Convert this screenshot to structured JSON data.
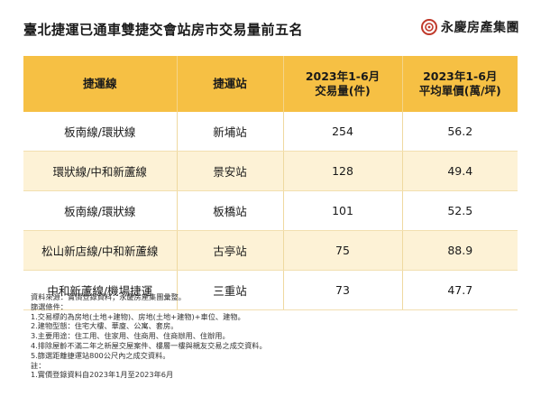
{
  "title": "臺北捷運已通車雙捷交會站房市交易量前五名",
  "brand": {
    "name": "永慶房產集團",
    "color": "#c0392b"
  },
  "table": {
    "headers": [
      {
        "line1": "捷運線",
        "line2": ""
      },
      {
        "line1": "捷運站",
        "line2": ""
      },
      {
        "line1": "2023年1-6月",
        "line2": "交易量(件)"
      },
      {
        "line1": "2023年1-6月",
        "line2": "平均單價(萬/坪)"
      }
    ],
    "rows": [
      {
        "line": "板南線/環狀線",
        "station": "新埔站",
        "volume": "254",
        "price": "56.2"
      },
      {
        "line": "環狀線/中和新蘆線",
        "station": "景安站",
        "volume": "128",
        "price": "49.4"
      },
      {
        "line": "板南線/環狀線",
        "station": "板橋站",
        "volume": "101",
        "price": "52.5"
      },
      {
        "line": "松山新店線/中和新蘆線",
        "station": "古亭站",
        "volume": "75",
        "price": "88.9"
      },
      {
        "line": "中和新蘆線/機場捷運",
        "station": "三重站",
        "volume": "73",
        "price": "47.7"
      }
    ],
    "header_color": "#f6c044",
    "stripe_color": "#fdf2d6"
  },
  "notes": [
    "資料來源：實價登錄資料；永慶房產集團彙整。",
    "篩選條件：",
    "1.交易標的為房地(土地+建物)、房地(土地+建物)+車位、建物。",
    "2.建物型態：住宅大樓、華廈、公寓、套房。",
    "3.主要用途：住工用、住家用、住商用、住商辦用、住辦用。",
    "4.排除屋齡不滿二年之新屋交屋案件、樓層一樓與親友交易之成交資料。",
    "5.篩選距離捷運站800公尺內之成交資料。",
    "註：",
    "1.實價登錄資料自2023年1月至2023年6月"
  ]
}
